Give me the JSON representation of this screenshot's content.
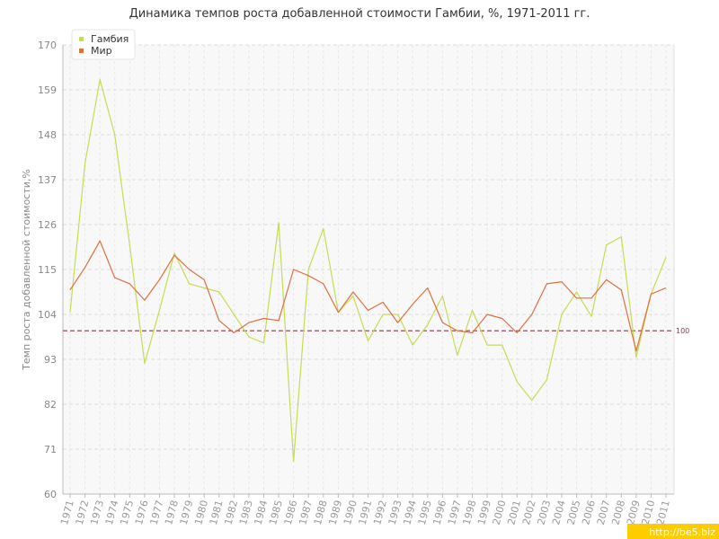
{
  "chart_data": {
    "type": "line",
    "title": "Динамика темпов роста добавленной стоимости Гамбии, %, 1971-2011 гг.",
    "xlabel": "",
    "ylabel": "Темп роста добавленной стоимости,%",
    "ylim": [
      60,
      170
    ],
    "yticks": [
      60,
      71,
      82,
      93,
      104,
      115,
      126,
      137,
      148,
      159,
      170
    ],
    "grid": true,
    "legend_position": "top-left",
    "reference_line": {
      "value": 100,
      "label": "100",
      "color": "#8b3a4a"
    },
    "x": [
      "1971",
      "1972",
      "1973",
      "1974",
      "1975",
      "1976",
      "1977",
      "1978",
      "1979",
      "1980",
      "1981",
      "1982",
      "1983",
      "1984",
      "1985",
      "1986",
      "1987",
      "1988",
      "1989",
      "1990",
      "1991",
      "1992",
      "1993",
      "1994",
      "1995",
      "1996",
      "1997",
      "1998",
      "1999",
      "2000",
      "2001",
      "2002",
      "2003",
      "2004",
      "2005",
      "2006",
      "2007",
      "2008",
      "2009",
      "2010",
      "2011"
    ],
    "series": [
      {
        "name": "Гамбия",
        "color": "#c5dc54",
        "values": [
          104.5,
          141,
          161.5,
          148,
          121,
          92,
          105,
          119,
          111.5,
          110.5,
          109.5,
          104,
          98.5,
          97,
          126.5,
          68,
          115,
          125,
          104.5,
          108.5,
          97.5,
          104,
          104,
          96.5,
          101.5,
          108.5,
          94,
          105,
          96.5,
          96.5,
          87.5,
          83,
          88,
          104,
          109.5,
          103.5,
          121,
          123,
          93.5,
          109,
          118
        ]
      },
      {
        "name": "Мир",
        "color": "#e07040",
        "values": [
          110,
          115.5,
          122,
          113,
          111.5,
          107.5,
          112.5,
          118.5,
          115,
          112.5,
          102.5,
          99.5,
          102,
          103,
          102.5,
          115,
          113.5,
          111.5,
          104.5,
          109.5,
          105,
          107,
          102,
          106.5,
          110.5,
          102,
          100,
          99.5,
          104,
          103,
          99.5,
          104,
          111.5,
          112,
          108,
          108,
          112.5,
          110,
          95,
          109,
          110.5
        ]
      }
    ]
  },
  "watermark": "http://be5.biz"
}
